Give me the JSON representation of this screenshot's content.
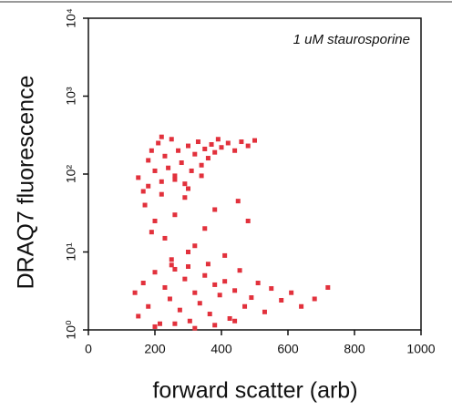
{
  "chart_data": {
    "type": "scatter",
    "annotation": "1 uM staurosporine",
    "x_label": "forward scatter (arb)",
    "y_label": "DRAQ7 fluorescence",
    "xlim": [
      0,
      1000
    ],
    "xticks": [
      0,
      200,
      400,
      600,
      800,
      1000
    ],
    "ylim": [
      1,
      10000
    ],
    "y_scale": "log",
    "yticks": [
      {
        "value": 1,
        "label": "10⁰"
      },
      {
        "value": 10,
        "label": "10¹"
      },
      {
        "value": 100,
        "label": "10²"
      },
      {
        "value": 1000,
        "label": "10³"
      },
      {
        "value": 10000,
        "label": "10⁴"
      }
    ],
    "color": "#e2313c",
    "x": [
      150,
      165,
      180,
      190,
      200,
      210,
      220,
      230,
      240,
      250,
      260,
      270,
      280,
      290,
      300,
      310,
      320,
      330,
      340,
      350,
      360,
      370,
      380,
      390,
      400,
      420,
      440,
      460,
      480,
      500,
      180,
      220,
      260,
      300,
      340,
      140,
      150,
      165,
      180,
      200,
      215,
      230,
      245,
      260,
      275,
      290,
      305,
      320,
      335,
      350,
      365,
      380,
      395,
      410,
      425,
      440,
      455,
      470,
      490,
      510,
      530,
      550,
      580,
      610,
      640,
      680,
      720,
      200,
      260,
      320,
      380,
      440,
      300,
      360,
      250,
      170,
      200,
      230,
      260,
      290,
      320,
      350,
      380,
      410,
      450,
      250,
      300,
      190,
      220,
      480
    ],
    "y": [
      90,
      60,
      150,
      200,
      110,
      250,
      80,
      170,
      120,
      280,
      95,
      200,
      140,
      75,
      230,
      110,
      180,
      260,
      130,
      210,
      160,
      240,
      190,
      280,
      220,
      250,
      200,
      260,
      230,
      270,
      70,
      300,
      85,
      65,
      95,
      3,
      1.5,
      4,
      2,
      5.5,
      1.2,
      3.5,
      2.5,
      6,
      1.8,
      4.5,
      1.3,
      3,
      2.2,
      5,
      1.6,
      3.8,
      2.8,
      4.2,
      1.4,
      3.2,
      5.8,
      2,
      2.6,
      4,
      1.7,
      3.4,
      2.4,
      3,
      2,
      2.5,
      3.5,
      1.1,
      1.2,
      1.05,
      1.15,
      1.3,
      6.5,
      7,
      6.8,
      40,
      25,
      15,
      30,
      50,
      12,
      20,
      35,
      9,
      45,
      8,
      10,
      18,
      55,
      25
    ]
  }
}
